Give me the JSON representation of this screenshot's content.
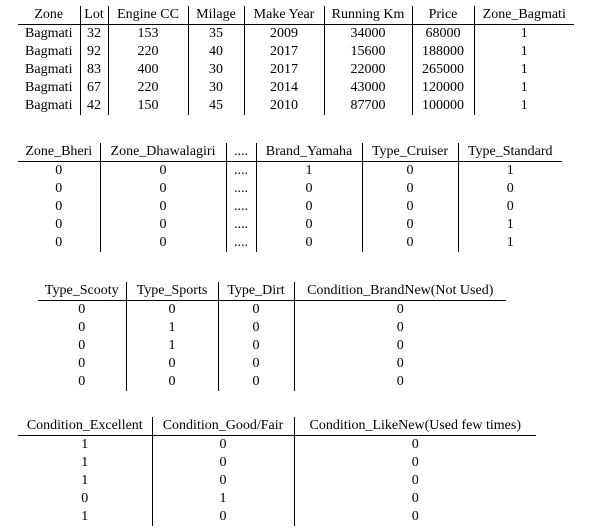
{
  "tables": [
    {
      "columns": [
        "Zone",
        "Lot",
        "Engine CC",
        "Milage",
        "Make Year",
        "Running Km",
        "Price",
        "Zone_Bagmati"
      ],
      "rows": [
        [
          "Bagmati",
          "32",
          "153",
          "35",
          "2009",
          "34000",
          "68000",
          "1"
        ],
        [
          "Bagmati",
          "92",
          "220",
          "40",
          "2017",
          "15600",
          "188000",
          "1"
        ],
        [
          "Bagmati",
          "83",
          "400",
          "30",
          "2017",
          "22000",
          "265000",
          "1"
        ],
        [
          "Bagmati",
          "67",
          "220",
          "30",
          "2014",
          "43000",
          "120000",
          "1"
        ],
        [
          "Bagmati",
          "42",
          "150",
          "45",
          "2010",
          "87700",
          "100000",
          "1"
        ]
      ]
    },
    {
      "columns": [
        "Zone_Bheri",
        "Zone_Dhawalagiri",
        "....",
        "Brand_Yamaha",
        "Type_Cruiser",
        "Type_Standard"
      ],
      "rows": [
        [
          "0",
          "0",
          "....",
          "1",
          "0",
          "1"
        ],
        [
          "0",
          "0",
          "....",
          "0",
          "0",
          "0"
        ],
        [
          "0",
          "0",
          "....",
          "0",
          "0",
          "0"
        ],
        [
          "0",
          "0",
          "....",
          "0",
          "0",
          "1"
        ],
        [
          "0",
          "0",
          "....",
          "0",
          "0",
          "1"
        ]
      ]
    },
    {
      "columns": [
        "Type_Scooty",
        "Type_Sports",
        "Type_Dirt",
        "Condition_BrandNew(Not Used)"
      ],
      "rows": [
        [
          "0",
          "0",
          "0",
          "0"
        ],
        [
          "0",
          "1",
          "0",
          "0"
        ],
        [
          "0",
          "1",
          "0",
          "0"
        ],
        [
          "0",
          "0",
          "0",
          "0"
        ],
        [
          "0",
          "0",
          "0",
          "0"
        ]
      ]
    },
    {
      "columns": [
        "Condition_Excellent",
        "Condition_Good/Fair",
        "Condition_LikeNew(Used few times)"
      ],
      "rows": [
        [
          "1",
          "0",
          "0"
        ],
        [
          "1",
          "0",
          "0"
        ],
        [
          "1",
          "0",
          "0"
        ],
        [
          "0",
          "1",
          "0"
        ],
        [
          "1",
          "0",
          "0"
        ]
      ]
    }
  ]
}
